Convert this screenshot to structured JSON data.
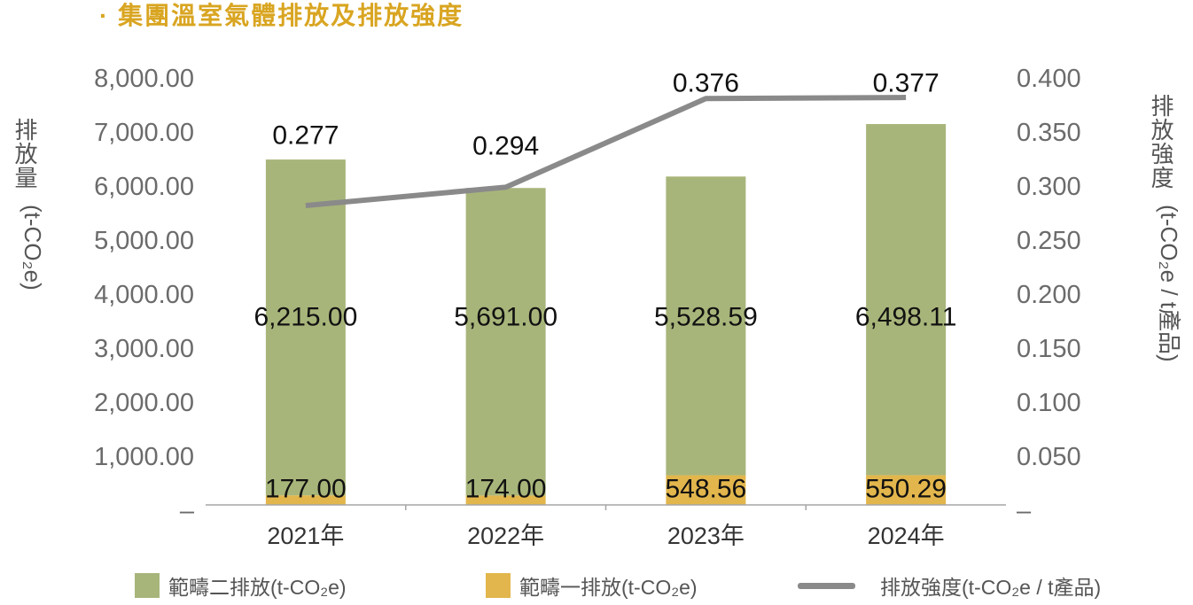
{
  "chart_data": {
    "type": "bar",
    "title": "· 集團溫室氣體排放及排放強度",
    "title_color": "#d9a521",
    "stacked": true,
    "categories": [
      "2021年",
      "2022年",
      "2023年",
      "2024年"
    ],
    "series": [
      {
        "name": "範疇一排放(t-CO₂e)",
        "type": "bar",
        "axis": "left",
        "color": "#e2b64c",
        "values": [
          177.0,
          174.0,
          548.56,
          550.29
        ],
        "labels": [
          "177.00",
          "174.00",
          "548.56",
          "550.29"
        ]
      },
      {
        "name": "範疇二排放(t-CO₂e)",
        "type": "bar",
        "axis": "left",
        "color": "#a8b57a",
        "values": [
          6215.0,
          5691.0,
          5528.59,
          6498.11
        ],
        "labels": [
          "6,215.00",
          "5,691.00",
          "5,528.59",
          "6,498.11"
        ]
      },
      {
        "name": "排放強度(t-CO₂e / t產品)",
        "type": "line",
        "axis": "right",
        "color": "#8a8a8a",
        "values": [
          0.277,
          0.294,
          0.376,
          0.377
        ],
        "labels": [
          "0.277",
          "0.294",
          "0.376",
          "0.377"
        ]
      }
    ],
    "y_left": {
      "label": "排放量",
      "unit": "(t-CO₂e)",
      "range": [
        0,
        8000
      ],
      "ticks": [
        0,
        1000,
        2000,
        3000,
        4000,
        5000,
        6000,
        7000,
        8000
      ],
      "tick_labels": [
        "–",
        "1,000.00",
        "2,000.00",
        "3,000.00",
        "4,000.00",
        "5,000.00",
        "6,000.00",
        "7,000.00",
        "8,000.00"
      ]
    },
    "y_right": {
      "label": "排放強度",
      "unit": "(t-CO₂e / t產品)",
      "range": [
        0,
        0.4
      ],
      "ticks": [
        0,
        0.05,
        0.1,
        0.15,
        0.2,
        0.25,
        0.3,
        0.35,
        0.4
      ],
      "tick_labels": [
        "–",
        "0.050",
        "0.100",
        "0.150",
        "0.200",
        "0.250",
        "0.300",
        "0.350",
        "0.400"
      ]
    },
    "grid": false,
    "legend": "bottom"
  }
}
